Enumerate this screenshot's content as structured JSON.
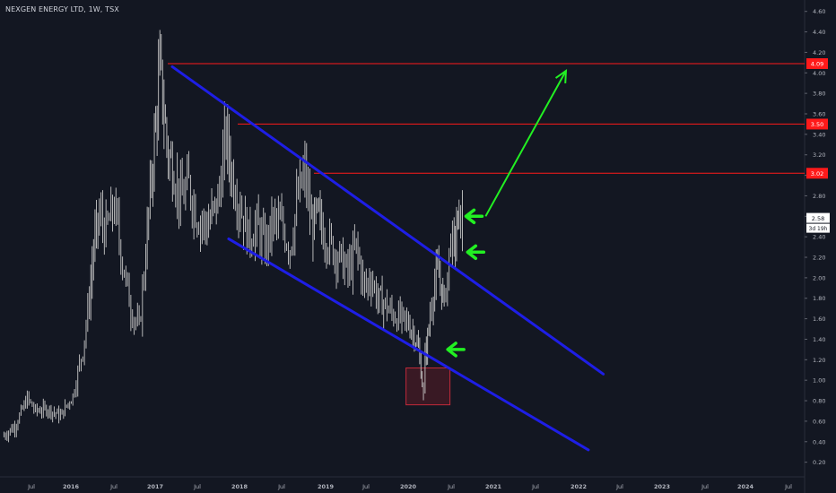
{
  "header": {
    "symbol_name": "NEXGEN ENERGY LTD",
    "interval": "1W",
    "exchange": "TSX"
  },
  "colors": {
    "background": "#131722",
    "candle": "#c8c8c8",
    "channel": "#1e1ee6",
    "level_line": "#ff1a1a",
    "level_label_bg": "#ff1a1a",
    "arrow": "#22f022",
    "box_border": "#c22a3a",
    "box_fill": "#5a1c26",
    "axis_text": "#b2b5be",
    "price_label_bg": "#ffffff"
  },
  "chart_data": {
    "type": "line",
    "title": "NEXGEN ENERGY LTD, 1W, TSX",
    "y_axis": {
      "ticks": [
        "4.60",
        "4.40",
        "4.20",
        "4.00",
        "3.80",
        "3.60",
        "3.40",
        "3.20",
        "3.00",
        "2.80",
        "2.60",
        "2.40",
        "2.20",
        "2.00",
        "1.80",
        "1.60",
        "1.40",
        "1.20",
        "1.00",
        "0.80",
        "0.60",
        "0.40",
        "0.20"
      ],
      "range": [
        0.1,
        4.7
      ],
      "position": "right"
    },
    "x_axis": {
      "ticks": [
        "Jul",
        "2016",
        "Jul",
        "2017",
        "Jul",
        "2018",
        "Jul",
        "2019",
        "Jul",
        "2020",
        "Jul",
        "2021",
        "Jul",
        "2022",
        "Jul",
        "2023",
        "Jul",
        "2024",
        "Jul"
      ],
      "range": [
        2015.15,
        2024.55
      ]
    },
    "series": [
      {
        "x": [
          2015.15,
          2015.3,
          2015.45,
          2015.55,
          2015.7,
          2015.85,
          2016.0,
          2016.12,
          2016.2,
          2016.25,
          2016.32,
          2016.4,
          2016.5,
          2016.6,
          2016.7,
          2016.8,
          2016.88,
          2016.95,
          2017.0,
          2017.05,
          2017.1,
          2017.15,
          2017.22,
          2017.3,
          2017.4,
          2017.5,
          2017.62,
          2017.75,
          2017.85,
          2017.92,
          2018.02,
          2018.12,
          2018.22,
          2018.32,
          2018.42,
          2018.52,
          2018.62,
          2018.72,
          2018.8,
          2018.88,
          2018.95,
          2019.02,
          2019.12,
          2019.22,
          2019.32,
          2019.42,
          2019.52,
          2019.6,
          2019.68,
          2019.75,
          2019.85,
          2019.95,
          2020.05,
          2020.12,
          2020.17,
          2020.2,
          2020.23,
          2020.25,
          2020.28,
          2020.31,
          2020.35,
          2020.4,
          2020.45,
          2020.48,
          2020.52,
          2020.56,
          2020.6,
          2020.63,
          2020.66,
          2020.7
        ],
        "values": [
          0.45,
          0.55,
          0.82,
          0.7,
          0.72,
          0.65,
          0.85,
          1.3,
          1.8,
          2.3,
          2.6,
          2.45,
          2.7,
          2.15,
          1.7,
          1.5,
          2.25,
          3.0,
          3.5,
          4.05,
          3.6,
          3.2,
          3.05,
          2.75,
          2.9,
          2.6,
          2.5,
          2.75,
          3.4,
          3.0,
          2.7,
          2.4,
          2.5,
          2.3,
          2.55,
          2.5,
          2.3,
          2.8,
          3.02,
          2.5,
          2.6,
          2.45,
          2.3,
          2.2,
          2.05,
          2.3,
          1.9,
          2.0,
          1.8,
          1.75,
          1.65,
          1.6,
          1.55,
          1.45,
          1.3,
          1.1,
          0.85,
          1.25,
          1.4,
          1.65,
          1.9,
          2.05,
          1.9,
          1.75,
          2.05,
          2.4,
          2.25,
          2.5,
          2.55,
          2.58
        ]
      }
    ],
    "levels": [
      {
        "value": 4.09,
        "label": "4.09"
      },
      {
        "value": 3.5,
        "label": "3.50"
      },
      {
        "value": 3.02,
        "label": "3.02"
      }
    ],
    "current_price": {
      "value": 2.58,
      "label": "2.58",
      "countdown": "3d 19h"
    },
    "channel": {
      "upper": {
        "from": [
          2017.2,
          4.06
        ],
        "to": [
          2022.4,
          1.06
        ]
      },
      "lower": {
        "from": [
          2017.88,
          2.38
        ],
        "to": [
          2022.22,
          0.32
        ]
      }
    },
    "projection_arrow": {
      "from": [
        2020.98,
        2.6
      ],
      "to": [
        2021.95,
        4.02
      ]
    },
    "pointer_arrows": [
      {
        "x": 2020.7,
        "y": 2.6
      },
      {
        "x": 2020.72,
        "y": 2.25
      },
      {
        "x": 2020.48,
        "y": 1.3
      }
    ],
    "highlight_box": {
      "x": [
        2020.02,
        2020.55
      ],
      "y": [
        0.76,
        1.12
      ]
    },
    "grid": false,
    "legend": "none"
  }
}
